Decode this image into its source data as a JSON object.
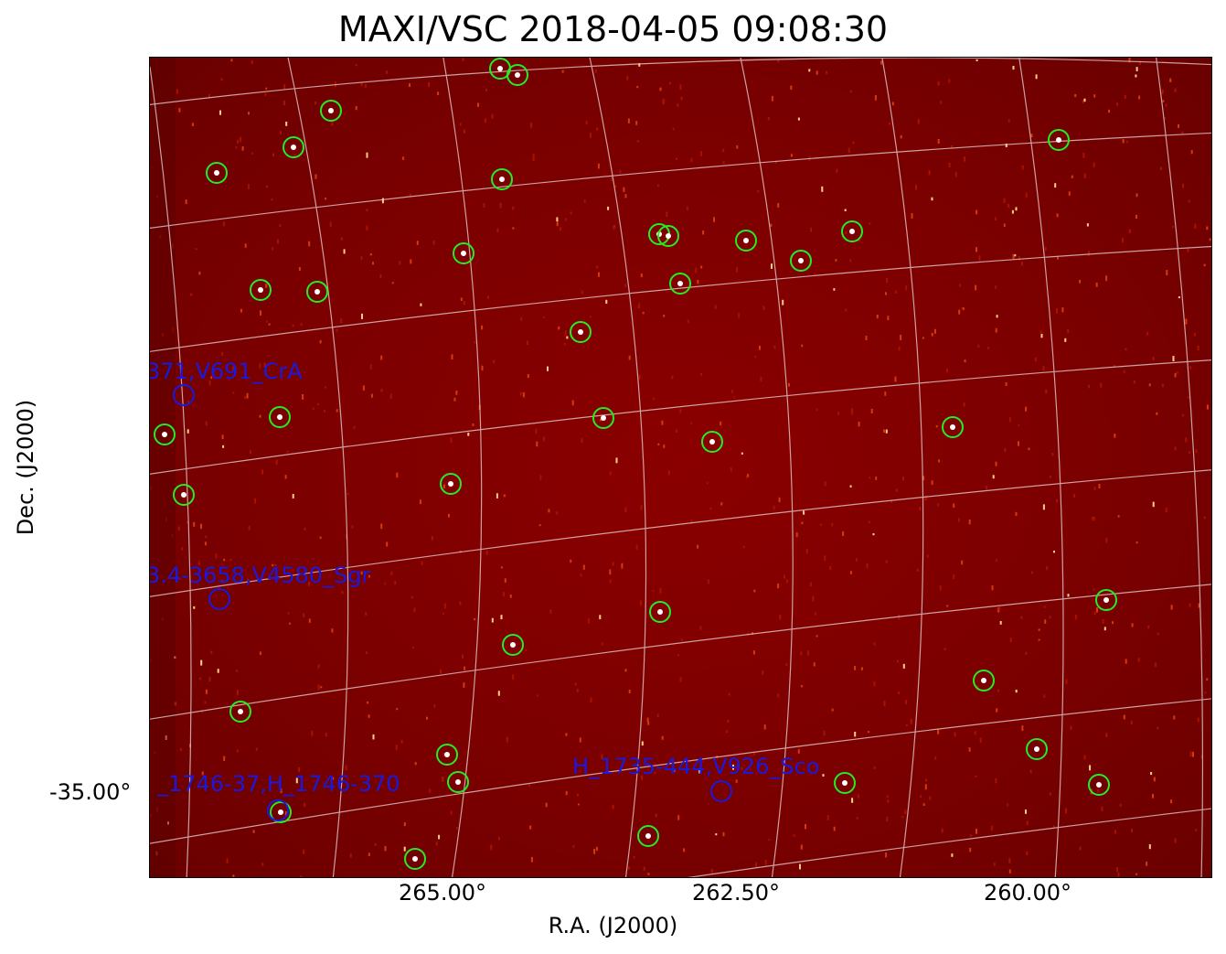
{
  "title": "MAXI/VSC 2018-04-05 09:08:30",
  "xlabel": "R.A. (J2000)",
  "ylabel": "Dec. (J2000)",
  "xticks": [
    {
      "label": "265.00°"
    },
    {
      "label": "262.50°"
    },
    {
      "label": "260.00°"
    }
  ],
  "yticks": [
    {
      "label": "-35.00°"
    }
  ],
  "sources": [
    {
      "label": "371,V691_CrA"
    },
    {
      "label": "3.4-3658,V4580_Sgr"
    },
    {
      "label": "_1746-37,H_1746-370"
    },
    {
      "label": "H_1735-444,V926_Sco"
    }
  ],
  "colors": {
    "background": "#7a0000",
    "grid": "#e8d8d8",
    "star_circle": "#22ee22",
    "source_marker": "#1a1adf",
    "text": "#000000"
  }
}
